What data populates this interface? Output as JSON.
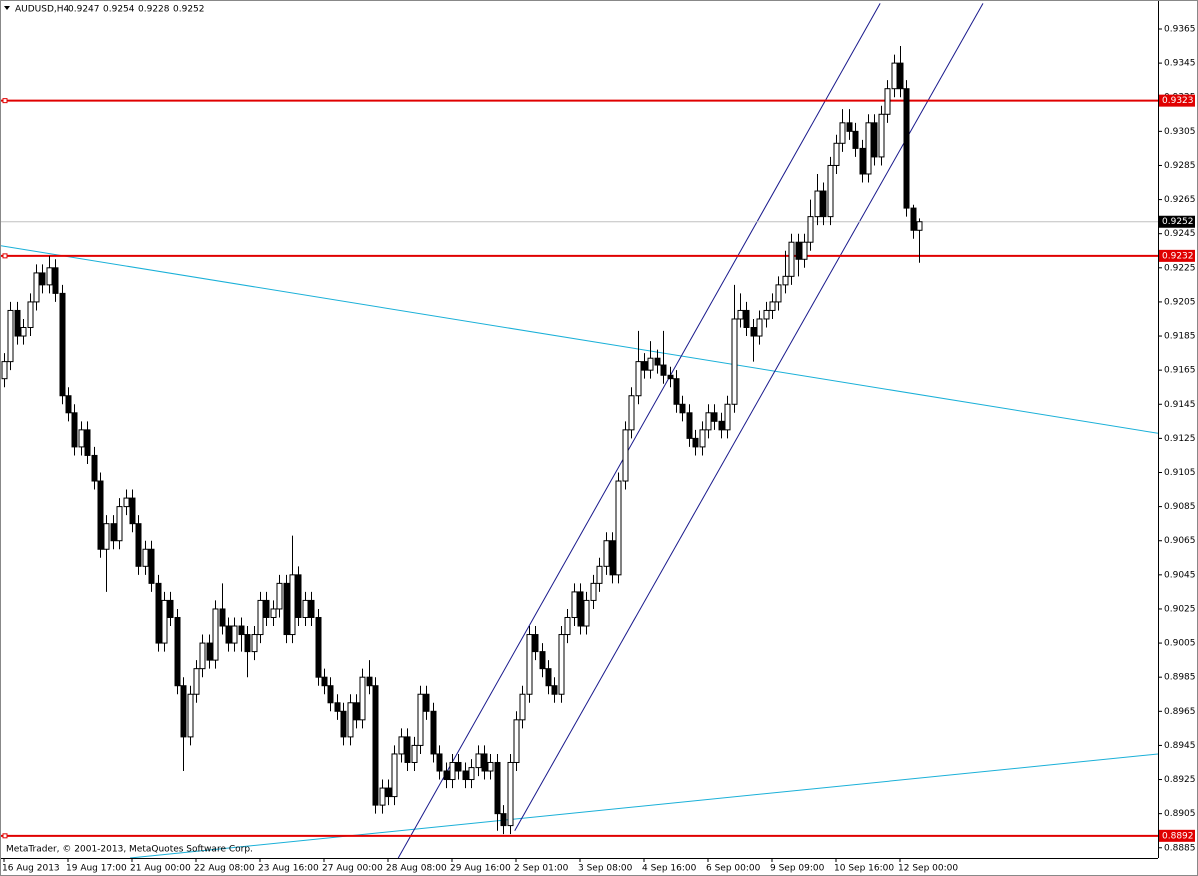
{
  "chart_data": {
    "type": "candlestick",
    "symbol": "AUDUSD,H4",
    "footer": "MetaTrader, © 2001-2013, MetaQuotes Software Corp.",
    "ylim": [
      0.8879,
      0.9382
    ],
    "yticks": [
      0.9365,
      0.9345,
      0.9325,
      0.9305,
      0.9285,
      0.9265,
      0.9245,
      0.9225,
      0.9205,
      0.9185,
      0.9165,
      0.9145,
      0.9125,
      0.9105,
      0.9085,
      0.9065,
      0.9045,
      0.9025,
      0.9005,
      0.8985,
      0.8965,
      0.8945,
      0.8925,
      0.8905,
      0.8885
    ],
    "xticks": [
      {
        "value": 0,
        "label": "16 Aug 2013"
      },
      {
        "value": 10,
        "label": "19 Aug 17:00"
      },
      {
        "value": 20,
        "label": "21 Aug 00:00"
      },
      {
        "value": 30,
        "label": "22 Aug 08:00"
      },
      {
        "value": 40,
        "label": "23 Aug 16:00"
      },
      {
        "value": 50,
        "label": "27 Aug 00:00"
      },
      {
        "value": 60,
        "label": "28 Aug 08:00"
      },
      {
        "value": 70,
        "label": "29 Aug 16:00"
      },
      {
        "value": 80,
        "label": "2 Sep 01:00"
      },
      {
        "value": 90,
        "label": "3 Sep 08:00"
      },
      {
        "value": 100,
        "label": "4 Sep 16:00"
      },
      {
        "value": 110,
        "label": "6 Sep 00:00"
      },
      {
        "value": 120,
        "label": "9 Sep 09:00"
      },
      {
        "value": 130,
        "label": "10 Sep 16:00"
      },
      {
        "value": 140,
        "label": "12 Sep 00:00"
      }
    ],
    "hlines": [
      {
        "value": 0.9323,
        "color": "#e00000"
      },
      {
        "value": 0.9232,
        "color": "#e00000"
      },
      {
        "value": 0.8892,
        "color": "#e00000"
      }
    ],
    "trendlines": [
      {
        "x": [
          -0.6,
          180.3
        ],
        "y": [
          0.9238,
          0.9128
        ],
        "color": "#1ab0d8"
      },
      {
        "x": [
          19.7,
          180.3
        ],
        "y": [
          0.8879,
          0.894
        ],
        "color": "#1ab0d8"
      },
      {
        "x": [
          61.6,
          136.9
        ],
        "y": [
          0.8879,
          0.938
        ],
        "color": "#1a1a8c"
      },
      {
        "x": [
          79.8,
          152.97
        ],
        "y": [
          0.8895,
          0.938
        ],
        "color": "#1a1a8c"
      }
    ],
    "ohlc": [
      [
        0.916,
        0.9175,
        0.9155,
        0.917
      ],
      [
        0.917,
        0.9205,
        0.9165,
        0.92
      ],
      [
        0.92,
        0.9205,
        0.918,
        0.9185
      ],
      [
        0.9185,
        0.9195,
        0.918,
        0.919
      ],
      [
        0.919,
        0.921,
        0.9185,
        0.9205
      ],
      [
        0.9205,
        0.9227,
        0.92,
        0.9222
      ],
      [
        0.9222,
        0.9227,
        0.921,
        0.9215
      ],
      [
        0.9215,
        0.9232,
        0.921,
        0.9225
      ],
      [
        0.9225,
        0.923,
        0.9205,
        0.921
      ],
      [
        0.921,
        0.9215,
        0.9145,
        0.915
      ],
      [
        0.915,
        0.9155,
        0.9135,
        0.914
      ],
      [
        0.914,
        0.9145,
        0.9115,
        0.912
      ],
      [
        0.912,
        0.9135,
        0.9115,
        0.913
      ],
      [
        0.913,
        0.9135,
        0.911,
        0.9115
      ],
      [
        0.9115,
        0.912,
        0.9095,
        0.91
      ],
      [
        0.91,
        0.9105,
        0.9055,
        0.906
      ],
      [
        0.906,
        0.908,
        0.9035,
        0.9075
      ],
      [
        0.9075,
        0.908,
        0.906,
        0.9065
      ],
      [
        0.9065,
        0.909,
        0.906,
        0.9085
      ],
      [
        0.9085,
        0.9095,
        0.908,
        0.909
      ],
      [
        0.909,
        0.9095,
        0.907,
        0.9075
      ],
      [
        0.9075,
        0.908,
        0.9045,
        0.905
      ],
      [
        0.905,
        0.9065,
        0.9045,
        0.906
      ],
      [
        0.906,
        0.9065,
        0.9035,
        0.904
      ],
      [
        0.904,
        0.9045,
        0.9,
        0.9005
      ],
      [
        0.9005,
        0.9035,
        0.9,
        0.903
      ],
      [
        0.903,
        0.9035,
        0.9015,
        0.902
      ],
      [
        0.902,
        0.9025,
        0.8975,
        0.898
      ],
      [
        0.898,
        0.8985,
        0.893,
        0.895
      ],
      [
        0.895,
        0.898,
        0.8945,
        0.8975
      ],
      [
        0.8975,
        0.8995,
        0.897,
        0.899
      ],
      [
        0.899,
        0.901,
        0.8985,
        0.9005
      ],
      [
        0.9005,
        0.901,
        0.899,
        0.8995
      ],
      [
        0.8995,
        0.903,
        0.899,
        0.9025
      ],
      [
        0.9025,
        0.904,
        0.901,
        0.9015
      ],
      [
        0.9015,
        0.902,
        0.9,
        0.9005
      ],
      [
        0.9005,
        0.902,
        0.9,
        0.9015
      ],
      [
        0.9015,
        0.902,
        0.9,
        0.901
      ],
      [
        0.901,
        0.9015,
        0.8985,
        0.9
      ],
      [
        0.9,
        0.9015,
        0.8995,
        0.901
      ],
      [
        0.901,
        0.9035,
        0.9005,
        0.903
      ],
      [
        0.903,
        0.9035,
        0.9015,
        0.902
      ],
      [
        0.902,
        0.903,
        0.9015,
        0.9025
      ],
      [
        0.9025,
        0.9045,
        0.902,
        0.904
      ],
      [
        0.904,
        0.9045,
        0.9005,
        0.901
      ],
      [
        0.901,
        0.9068,
        0.9005,
        0.9045
      ],
      [
        0.9045,
        0.905,
        0.9015,
        0.902
      ],
      [
        0.902,
        0.9035,
        0.9015,
        0.903
      ],
      [
        0.903,
        0.9035,
        0.9015,
        0.902
      ],
      [
        0.902,
        0.9025,
        0.898,
        0.8985
      ],
      [
        0.8985,
        0.899,
        0.8975,
        0.898
      ],
      [
        0.898,
        0.8985,
        0.8965,
        0.897
      ],
      [
        0.897,
        0.8975,
        0.896,
        0.8965
      ],
      [
        0.8965,
        0.897,
        0.8945,
        0.895
      ],
      [
        0.895,
        0.8975,
        0.8945,
        0.897
      ],
      [
        0.897,
        0.8975,
        0.8955,
        0.896
      ],
      [
        0.896,
        0.899,
        0.8955,
        0.8985
      ],
      [
        0.8985,
        0.8995,
        0.8975,
        0.898
      ],
      [
        0.898,
        0.8985,
        0.8905,
        0.891
      ],
      [
        0.891,
        0.8925,
        0.8905,
        0.892
      ],
      [
        0.892,
        0.8925,
        0.891,
        0.8915
      ],
      [
        0.8915,
        0.8945,
        0.891,
        0.894
      ],
      [
        0.894,
        0.8955,
        0.8935,
        0.895
      ],
      [
        0.895,
        0.8955,
        0.893,
        0.8935
      ],
      [
        0.8935,
        0.895,
        0.893,
        0.8945
      ],
      [
        0.8945,
        0.898,
        0.894,
        0.8975
      ],
      [
        0.8975,
        0.898,
        0.896,
        0.8965
      ],
      [
        0.8965,
        0.897,
        0.8935,
        0.894
      ],
      [
        0.894,
        0.8945,
        0.8925,
        0.893
      ],
      [
        0.893,
        0.8935,
        0.892,
        0.8925
      ],
      [
        0.8925,
        0.894,
        0.892,
        0.8935
      ],
      [
        0.8935,
        0.894,
        0.8925,
        0.893
      ],
      [
        0.893,
        0.8935,
        0.892,
        0.8925
      ],
      [
        0.8925,
        0.8937,
        0.892,
        0.8932
      ],
      [
        0.8932,
        0.8945,
        0.8927,
        0.894
      ],
      [
        0.894,
        0.8945,
        0.8925,
        0.893
      ],
      [
        0.893,
        0.894,
        0.8925,
        0.8935
      ],
      [
        0.8935,
        0.894,
        0.8895,
        0.8905
      ],
      [
        0.8905,
        0.891,
        0.8893,
        0.8898
      ],
      [
        0.8898,
        0.894,
        0.8893,
        0.8935
      ],
      [
        0.8935,
        0.8965,
        0.893,
        0.896
      ],
      [
        0.896,
        0.898,
        0.8955,
        0.8975
      ],
      [
        0.8975,
        0.9015,
        0.897,
        0.901
      ],
      [
        0.901,
        0.9015,
        0.8995,
        0.9
      ],
      [
        0.9,
        0.9005,
        0.8985,
        0.899
      ],
      [
        0.899,
        0.8995,
        0.8975,
        0.898
      ],
      [
        0.898,
        0.8985,
        0.897,
        0.8975
      ],
      [
        0.8975,
        0.9015,
        0.897,
        0.901
      ],
      [
        0.901,
        0.9025,
        0.9005,
        0.902
      ],
      [
        0.902,
        0.904,
        0.9015,
        0.9035
      ],
      [
        0.9035,
        0.904,
        0.901,
        0.9015
      ],
      [
        0.9015,
        0.9035,
        0.901,
        0.903
      ],
      [
        0.903,
        0.9045,
        0.9025,
        0.904
      ],
      [
        0.904,
        0.9055,
        0.9035,
        0.905
      ],
      [
        0.905,
        0.907,
        0.9045,
        0.9065
      ],
      [
        0.9065,
        0.907,
        0.904,
        0.9045
      ],
      [
        0.9045,
        0.9105,
        0.904,
        0.91
      ],
      [
        0.91,
        0.9135,
        0.9095,
        0.913
      ],
      [
        0.913,
        0.9155,
        0.9125,
        0.915
      ],
      [
        0.915,
        0.9188,
        0.9145,
        0.917
      ],
      [
        0.917,
        0.9175,
        0.916,
        0.9165
      ],
      [
        0.9165,
        0.9182,
        0.916,
        0.9172
      ],
      [
        0.9172,
        0.9177,
        0.9163,
        0.9168
      ],
      [
        0.9168,
        0.9188,
        0.9157,
        0.9162
      ],
      [
        0.9162,
        0.9167,
        0.9155,
        0.916
      ],
      [
        0.916,
        0.9165,
        0.914,
        0.9145
      ],
      [
        0.9145,
        0.915,
        0.9135,
        0.914
      ],
      [
        0.914,
        0.9145,
        0.912,
        0.9125
      ],
      [
        0.9125,
        0.913,
        0.9115,
        0.912
      ],
      [
        0.912,
        0.9135,
        0.9115,
        0.913
      ],
      [
        0.913,
        0.9145,
        0.9125,
        0.914
      ],
      [
        0.914,
        0.9145,
        0.913,
        0.9135
      ],
      [
        0.9135,
        0.914,
        0.9125,
        0.913
      ],
      [
        0.913,
        0.915,
        0.9125,
        0.9145
      ],
      [
        0.9145,
        0.9215,
        0.914,
        0.9195
      ],
      [
        0.9195,
        0.921,
        0.919,
        0.92
      ],
      [
        0.92,
        0.9205,
        0.9185,
        0.919
      ],
      [
        0.919,
        0.9195,
        0.917,
        0.9185
      ],
      [
        0.9185,
        0.92,
        0.918,
        0.9195
      ],
      [
        0.9195,
        0.9205,
        0.919,
        0.92
      ],
      [
        0.92,
        0.921,
        0.9195,
        0.9205
      ],
      [
        0.9205,
        0.922,
        0.92,
        0.9215
      ],
      [
        0.9215,
        0.9235,
        0.921,
        0.922
      ],
      [
        0.922,
        0.9245,
        0.9215,
        0.924
      ],
      [
        0.924,
        0.9245,
        0.922,
        0.923
      ],
      [
        0.923,
        0.9245,
        0.9225,
        0.924
      ],
      [
        0.924,
        0.9265,
        0.9235,
        0.9255
      ],
      [
        0.9255,
        0.928,
        0.925,
        0.927
      ],
      [
        0.927,
        0.9275,
        0.925,
        0.9255
      ],
      [
        0.9255,
        0.929,
        0.925,
        0.9285
      ],
      [
        0.9285,
        0.9303,
        0.928,
        0.9298
      ],
      [
        0.9298,
        0.9318,
        0.9293,
        0.931
      ],
      [
        0.931,
        0.9318,
        0.93,
        0.9305
      ],
      [
        0.9305,
        0.931,
        0.929,
        0.9295
      ],
      [
        0.9295,
        0.93,
        0.9275,
        0.928
      ],
      [
        0.928,
        0.9315,
        0.9275,
        0.931
      ],
      [
        0.931,
        0.9315,
        0.9285,
        0.929
      ],
      [
        0.929,
        0.932,
        0.9285,
        0.9315
      ],
      [
        0.9315,
        0.9335,
        0.931,
        0.933
      ],
      [
        0.933,
        0.935,
        0.9325,
        0.9345
      ],
      [
        0.9345,
        0.9355,
        0.9325,
        0.933
      ],
      [
        0.933,
        0.9335,
        0.9255,
        0.926
      ],
      [
        0.926,
        0.9262,
        0.9242,
        0.9247
      ],
      [
        0.9247,
        0.9254,
        0.9228,
        0.9252
      ]
    ]
  }
}
